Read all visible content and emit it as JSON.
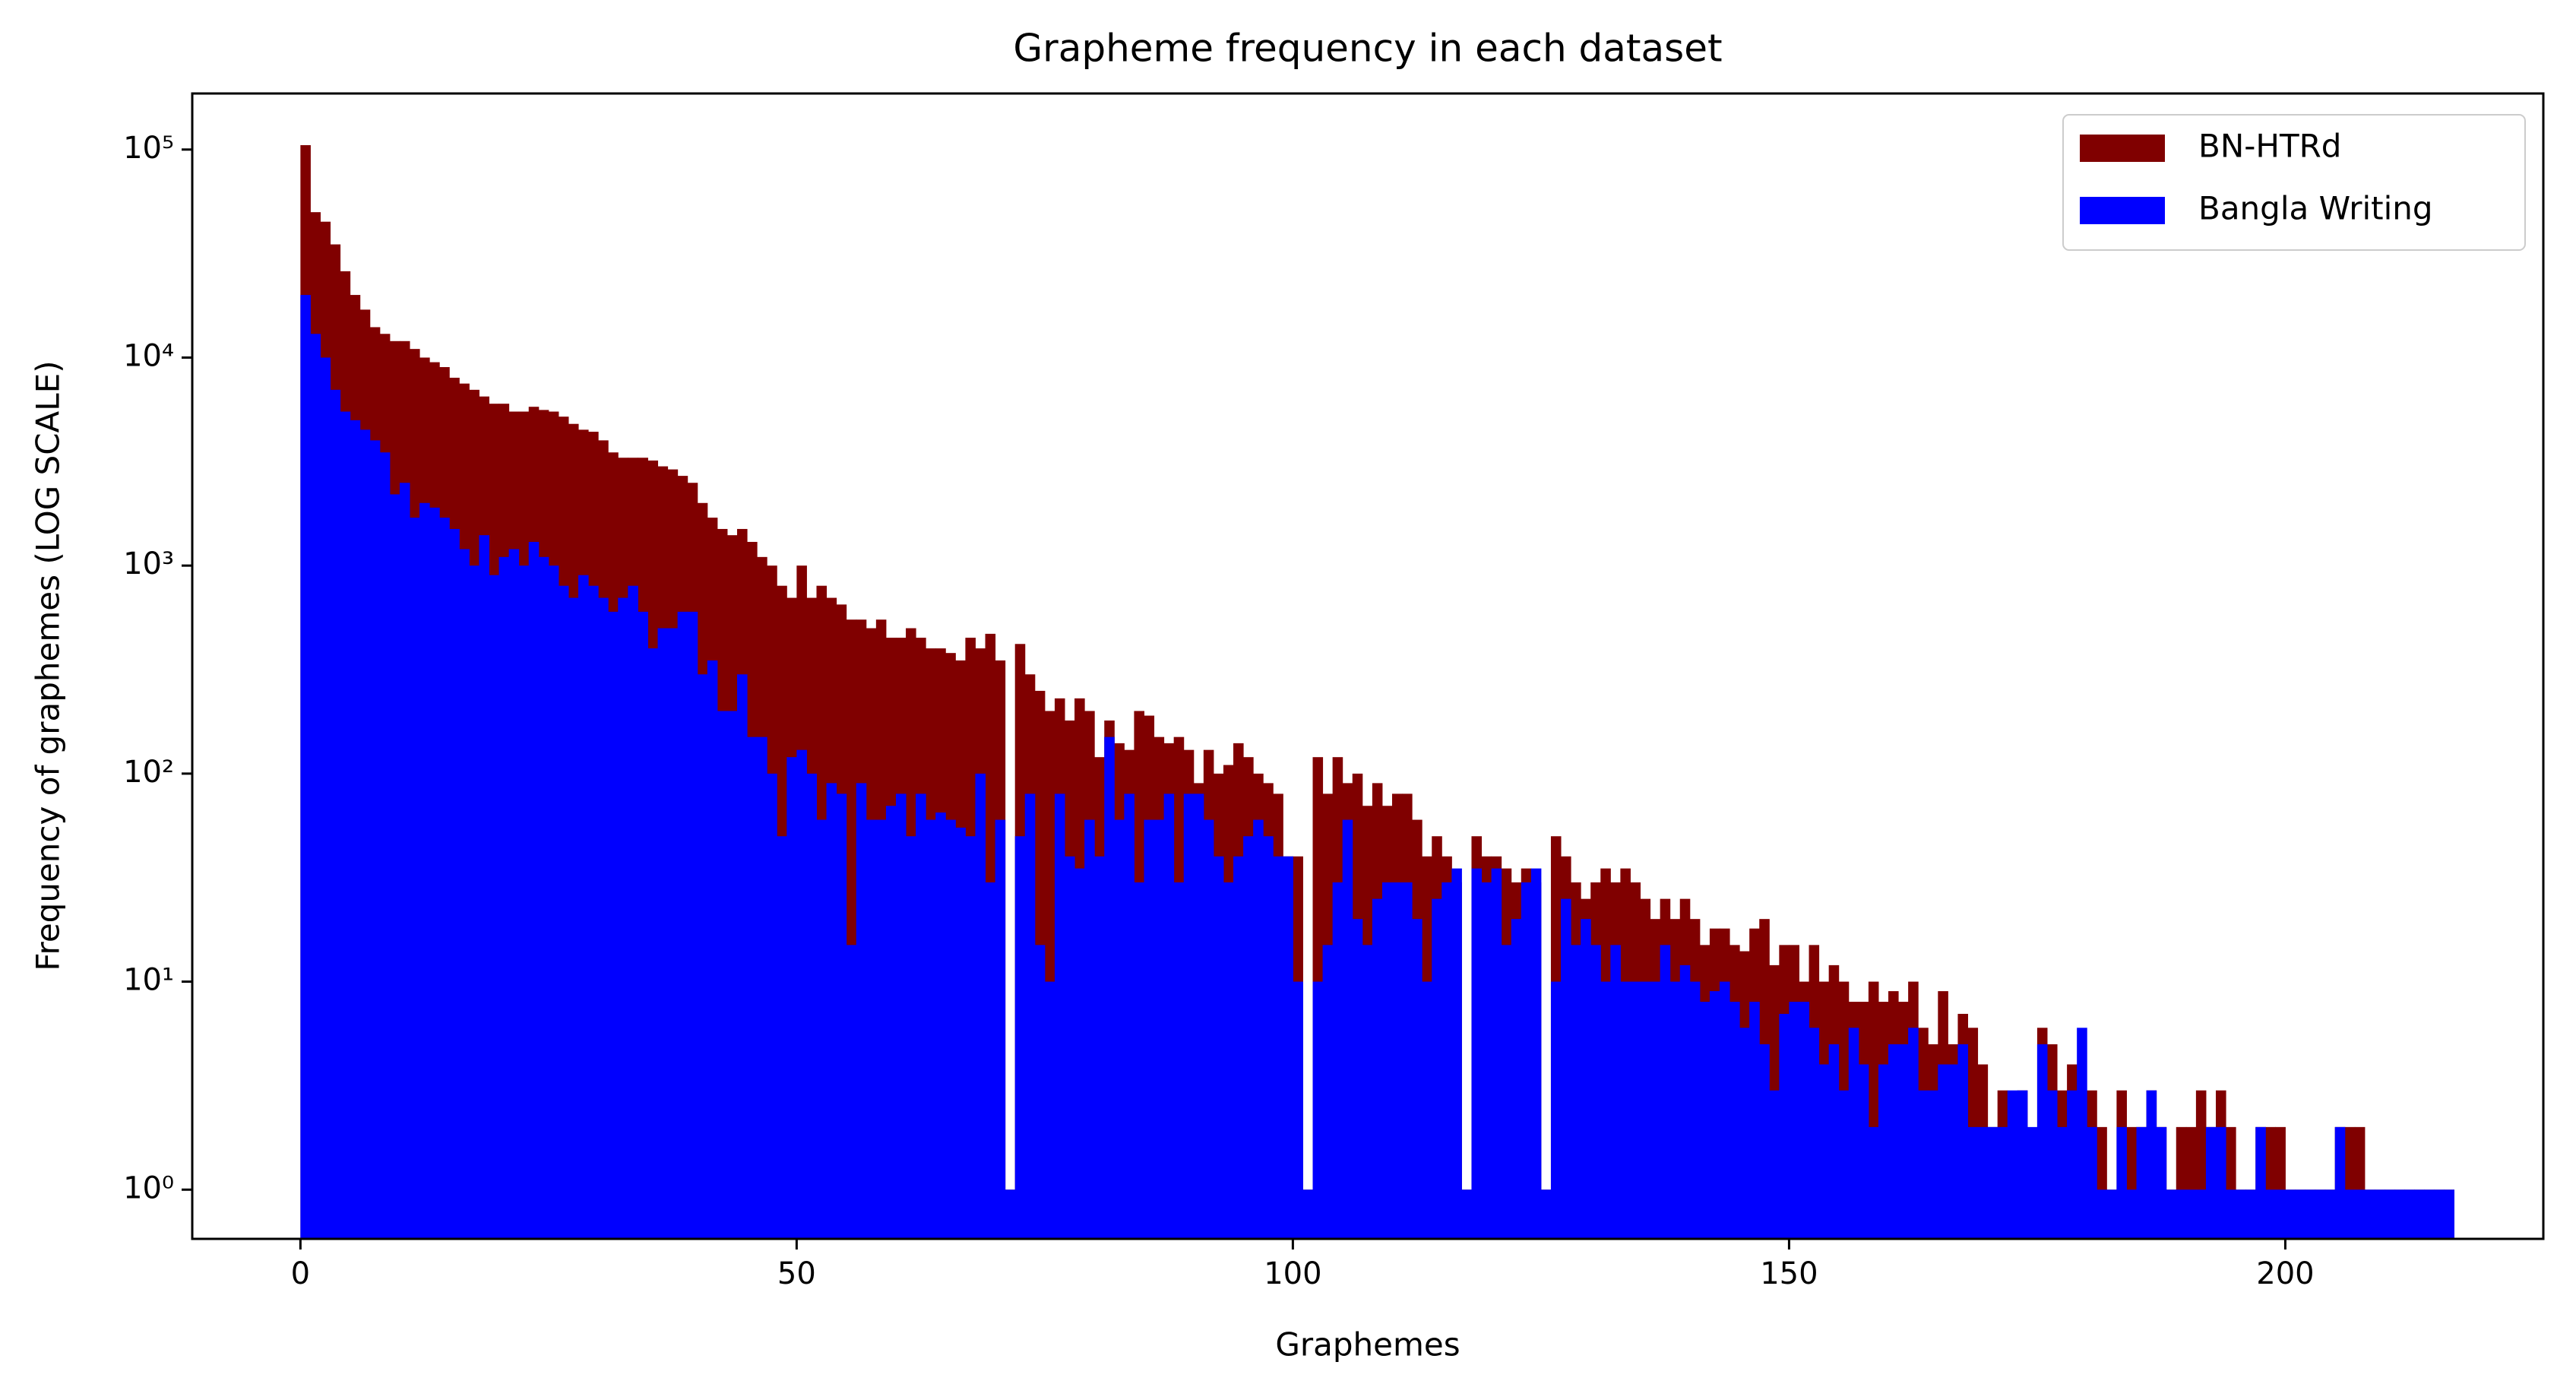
{
  "chart_data": {
    "type": "histogram",
    "title": "Grapheme frequency in each dataset",
    "xlabel": "Graphemes",
    "ylabel": "Frequency of graphemes (LOG SCALE)",
    "log_y": true,
    "legend": "upper right",
    "xlim": [
      -10.9,
      226
    ],
    "ylim": [
      0.58,
      186000
    ],
    "xticks": [
      0,
      50,
      100,
      150,
      200
    ],
    "yticks": [
      {
        "value": 1,
        "label": "10⁰"
      },
      {
        "value": 10,
        "label": "10¹"
      },
      {
        "value": 100,
        "label": "10²"
      },
      {
        "value": 1000,
        "label": "10³"
      },
      {
        "value": 10000,
        "label": "10⁴"
      },
      {
        "value": 100000,
        "label": "10⁵"
      }
    ],
    "bins": [
      0,
      1,
      2,
      3,
      4,
      5,
      6,
      7,
      8,
      9,
      10,
      11,
      12,
      13,
      14,
      15,
      16,
      17,
      18,
      19,
      20,
      21,
      22,
      23,
      24,
      25,
      26,
      27,
      28,
      29,
      30,
      31,
      32,
      33,
      34,
      35,
      36,
      37,
      38,
      39,
      40,
      41,
      42,
      43,
      44,
      45,
      46,
      47,
      48,
      49,
      50,
      51,
      52,
      53,
      54,
      55,
      56,
      57,
      58,
      59,
      60,
      61,
      62,
      63,
      64,
      65,
      66,
      67,
      68,
      69,
      70,
      71,
      72,
      73,
      74,
      75,
      76,
      77,
      78,
      79,
      80,
      81,
      82,
      83,
      84,
      85,
      86,
      87,
      88,
      89,
      90,
      91,
      92,
      93,
      94,
      95,
      96,
      97,
      98,
      99,
      100,
      101,
      102,
      103,
      104,
      105,
      106,
      107,
      108,
      109,
      110,
      111,
      112,
      113,
      114,
      115,
      116,
      117,
      118,
      119,
      120,
      121,
      122,
      123,
      124,
      125,
      126,
      127,
      128,
      129,
      130,
      131,
      132,
      133,
      134,
      135,
      136,
      137,
      138,
      139,
      140,
      141,
      142,
      143,
      144,
      145,
      146,
      147,
      148,
      149,
      150,
      151,
      152,
      153,
      154,
      155,
      156,
      157,
      158,
      159,
      160,
      161,
      162,
      163,
      164,
      165,
      166,
      167,
      168,
      169,
      170,
      171,
      172,
      173,
      174,
      175,
      176,
      177,
      178,
      179,
      180,
      181,
      182,
      183,
      184,
      185,
      186,
      187,
      188,
      189,
      190,
      191,
      192,
      193,
      194,
      195,
      196,
      197,
      198,
      199,
      200,
      201,
      202,
      203,
      204,
      205,
      206,
      207,
      208,
      209,
      210,
      211,
      212,
      213,
      214,
      215,
      216,
      217
    ],
    "series": [
      {
        "name": "BN-HTRd",
        "color": "#800000",
        "values": [
          105000,
          50000,
          45000,
          35000,
          26000,
          20000,
          17000,
          14000,
          13000,
          12000,
          12000,
          11000,
          10000,
          9500,
          9000,
          8000,
          7500,
          7000,
          6500,
          6000,
          6000,
          5500,
          5500,
          5800,
          5600,
          5500,
          5200,
          4800,
          4500,
          4400,
          4000,
          3500,
          3300,
          3300,
          3300,
          3200,
          3000,
          2900,
          2700,
          2500,
          2000,
          1700,
          1500,
          1400,
          1500,
          1300,
          1100,
          1000,
          800,
          700,
          1000,
          700,
          800,
          700,
          650,
          550,
          550,
          500,
          550,
          450,
          450,
          500,
          450,
          400,
          400,
          380,
          350,
          450,
          400,
          470,
          350,
          1,
          420,
          300,
          250,
          200,
          230,
          180,
          230,
          200,
          120,
          180,
          140,
          130,
          200,
          190,
          150,
          140,
          150,
          130,
          90,
          130,
          100,
          110,
          140,
          120,
          100,
          90,
          80,
          40,
          40,
          1,
          120,
          80,
          120,
          90,
          100,
          70,
          90,
          70,
          80,
          80,
          60,
          40,
          50,
          40,
          30,
          1,
          50,
          40,
          40,
          35,
          30,
          35,
          30,
          1,
          50,
          40,
          30,
          25,
          30,
          35,
          30,
          35,
          30,
          25,
          20,
          25,
          20,
          25,
          20,
          15,
          18,
          18,
          15,
          14,
          18,
          20,
          12,
          15,
          15,
          10,
          15,
          10,
          12,
          10,
          8,
          8,
          10,
          8,
          9,
          8,
          10,
          6,
          5,
          9,
          5,
          7,
          6,
          4,
          2,
          3,
          2,
          3,
          1,
          6,
          5,
          3,
          4,
          3,
          3,
          2,
          1,
          3,
          2,
          2,
          3,
          2,
          1,
          2,
          2,
          3,
          2,
          3,
          2,
          1,
          1,
          2,
          2,
          2,
          1,
          1,
          1,
          1,
          1,
          2,
          2,
          2,
          1,
          1,
          1,
          1,
          1,
          1,
          1,
          1,
          1
        ]
      },
      {
        "name": "Bangla Writing",
        "color": "#0000ff",
        "values": [
          20000,
          13000,
          10000,
          7000,
          5500,
          5000,
          4500,
          4000,
          3500,
          2200,
          2500,
          1700,
          2000,
          1900,
          1700,
          1500,
          1200,
          1000,
          1400,
          900,
          1100,
          1200,
          1000,
          1300,
          1100,
          1000,
          800,
          700,
          900,
          800,
          700,
          600,
          700,
          800,
          600,
          400,
          500,
          500,
          600,
          600,
          300,
          350,
          200,
          200,
          300,
          150,
          150,
          100,
          50,
          120,
          130,
          100,
          60,
          90,
          80,
          15,
          90,
          60,
          60,
          70,
          80,
          50,
          80,
          60,
          65,
          60,
          55,
          50,
          100,
          30,
          60,
          1,
          50,
          80,
          15,
          10,
          80,
          40,
          35,
          60,
          40,
          150,
          60,
          80,
          30,
          60,
          60,
          80,
          30,
          80,
          80,
          60,
          40,
          30,
          40,
          50,
          60,
          50,
          40,
          40,
          10,
          1,
          10,
          15,
          30,
          60,
          20,
          15,
          25,
          30,
          30,
          30,
          20,
          10,
          25,
          30,
          35,
          1,
          35,
          30,
          35,
          15,
          20,
          30,
          35,
          1,
          10,
          25,
          15,
          20,
          15,
          10,
          15,
          10,
          10,
          10,
          10,
          15,
          10,
          12,
          10,
          8,
          9,
          10,
          8,
          6,
          8,
          5,
          3,
          7,
          8,
          8,
          6,
          4,
          5,
          3,
          6,
          4,
          2,
          4,
          5,
          5,
          6,
          3,
          3,
          4,
          4,
          5,
          2,
          2,
          2,
          2,
          3,
          3,
          2,
          5,
          3,
          2,
          3,
          6,
          2,
          1,
          1,
          2,
          1,
          2,
          3,
          2,
          1,
          1,
          1,
          1,
          2,
          2,
          1,
          1,
          1,
          2,
          1,
          1,
          1,
          1,
          1,
          1,
          1,
          2,
          1,
          1,
          1,
          1,
          1,
          1,
          1,
          1,
          1,
          1,
          1
        ]
      }
    ]
  }
}
